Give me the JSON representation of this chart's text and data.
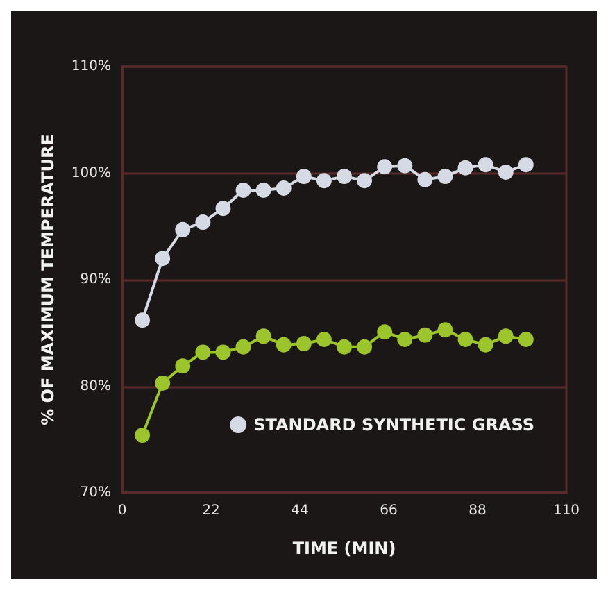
{
  "chart_data": {
    "type": "line",
    "xlabel": "TIME (MIN)",
    "ylabel": "% OF MAXIMUM TEMPERATURE",
    "x": [
      5,
      10,
      15,
      20,
      25,
      30,
      35,
      40,
      45,
      50,
      55,
      60,
      65,
      70,
      75,
      80,
      85,
      90,
      95,
      100
    ],
    "series": [
      {
        "name": "STANDARD SYNTHETIC GRASS",
        "color": "#d6dae4",
        "values": [
          86.2,
          92.0,
          94.7,
          95.4,
          96.7,
          98.4,
          98.4,
          98.6,
          99.7,
          99.3,
          99.7,
          99.3,
          100.6,
          100.7,
          99.4,
          99.7,
          100.5,
          100.8,
          100.1,
          100.8
        ]
      },
      {
        "color": "#9cc42c",
        "values": [
          75.4,
          80.3,
          81.9,
          83.2,
          83.2,
          83.7,
          84.7,
          83.9,
          84.0,
          84.4,
          83.7,
          83.7,
          85.1,
          84.4,
          84.8,
          85.3,
          84.4,
          83.9,
          84.7,
          84.4
        ]
      }
    ],
    "xlim": [
      0,
      110
    ],
    "xticks": [
      0,
      22,
      44,
      66,
      88,
      110
    ],
    "ylim": [
      70,
      110
    ],
    "yticks": [
      {
        "value": 70,
        "label": "70%"
      },
      {
        "value": 80,
        "label": "80%"
      },
      {
        "value": 90,
        "label": "90%"
      },
      {
        "value": 100,
        "label": "100%"
      },
      {
        "value": 110,
        "label": "110%"
      }
    ],
    "grid": "y",
    "legend": "bottom right",
    "marker": "circle",
    "line_style": "solid"
  }
}
